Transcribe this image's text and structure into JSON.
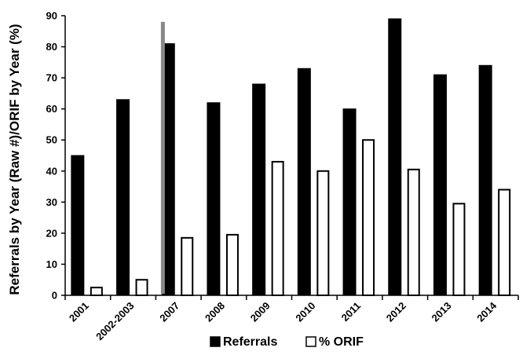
{
  "chart_data": {
    "type": "bar",
    "ylabel": "Referrals by Year (Raw #)/ORIF by Year (%)",
    "xlabel": "",
    "ylim": [
      0,
      90
    ],
    "y_ticks": [
      0,
      10,
      20,
      30,
      40,
      50,
      60,
      70,
      80,
      90
    ],
    "categories": [
      "2001",
      "2002-2003",
      "2007",
      "2008",
      "2009",
      "2010",
      "2011",
      "2012",
      "2013",
      "2014"
    ],
    "series": [
      {
        "name": "Referrals",
        "color": "#000000",
        "values": [
          45,
          63,
          81,
          62,
          68,
          73,
          60,
          89,
          71,
          74
        ]
      },
      {
        "name": "% ORIF",
        "color": "#ffffff",
        "values": [
          2.5,
          5,
          18.5,
          19.5,
          43,
          40,
          50,
          40.5,
          29.5,
          34
        ]
      }
    ],
    "legend_position": "bottom",
    "grid": false,
    "annotations": [
      {
        "type": "vertical-separator",
        "between": [
          "2002-2003",
          "2007"
        ],
        "color": "#888888"
      }
    ]
  }
}
